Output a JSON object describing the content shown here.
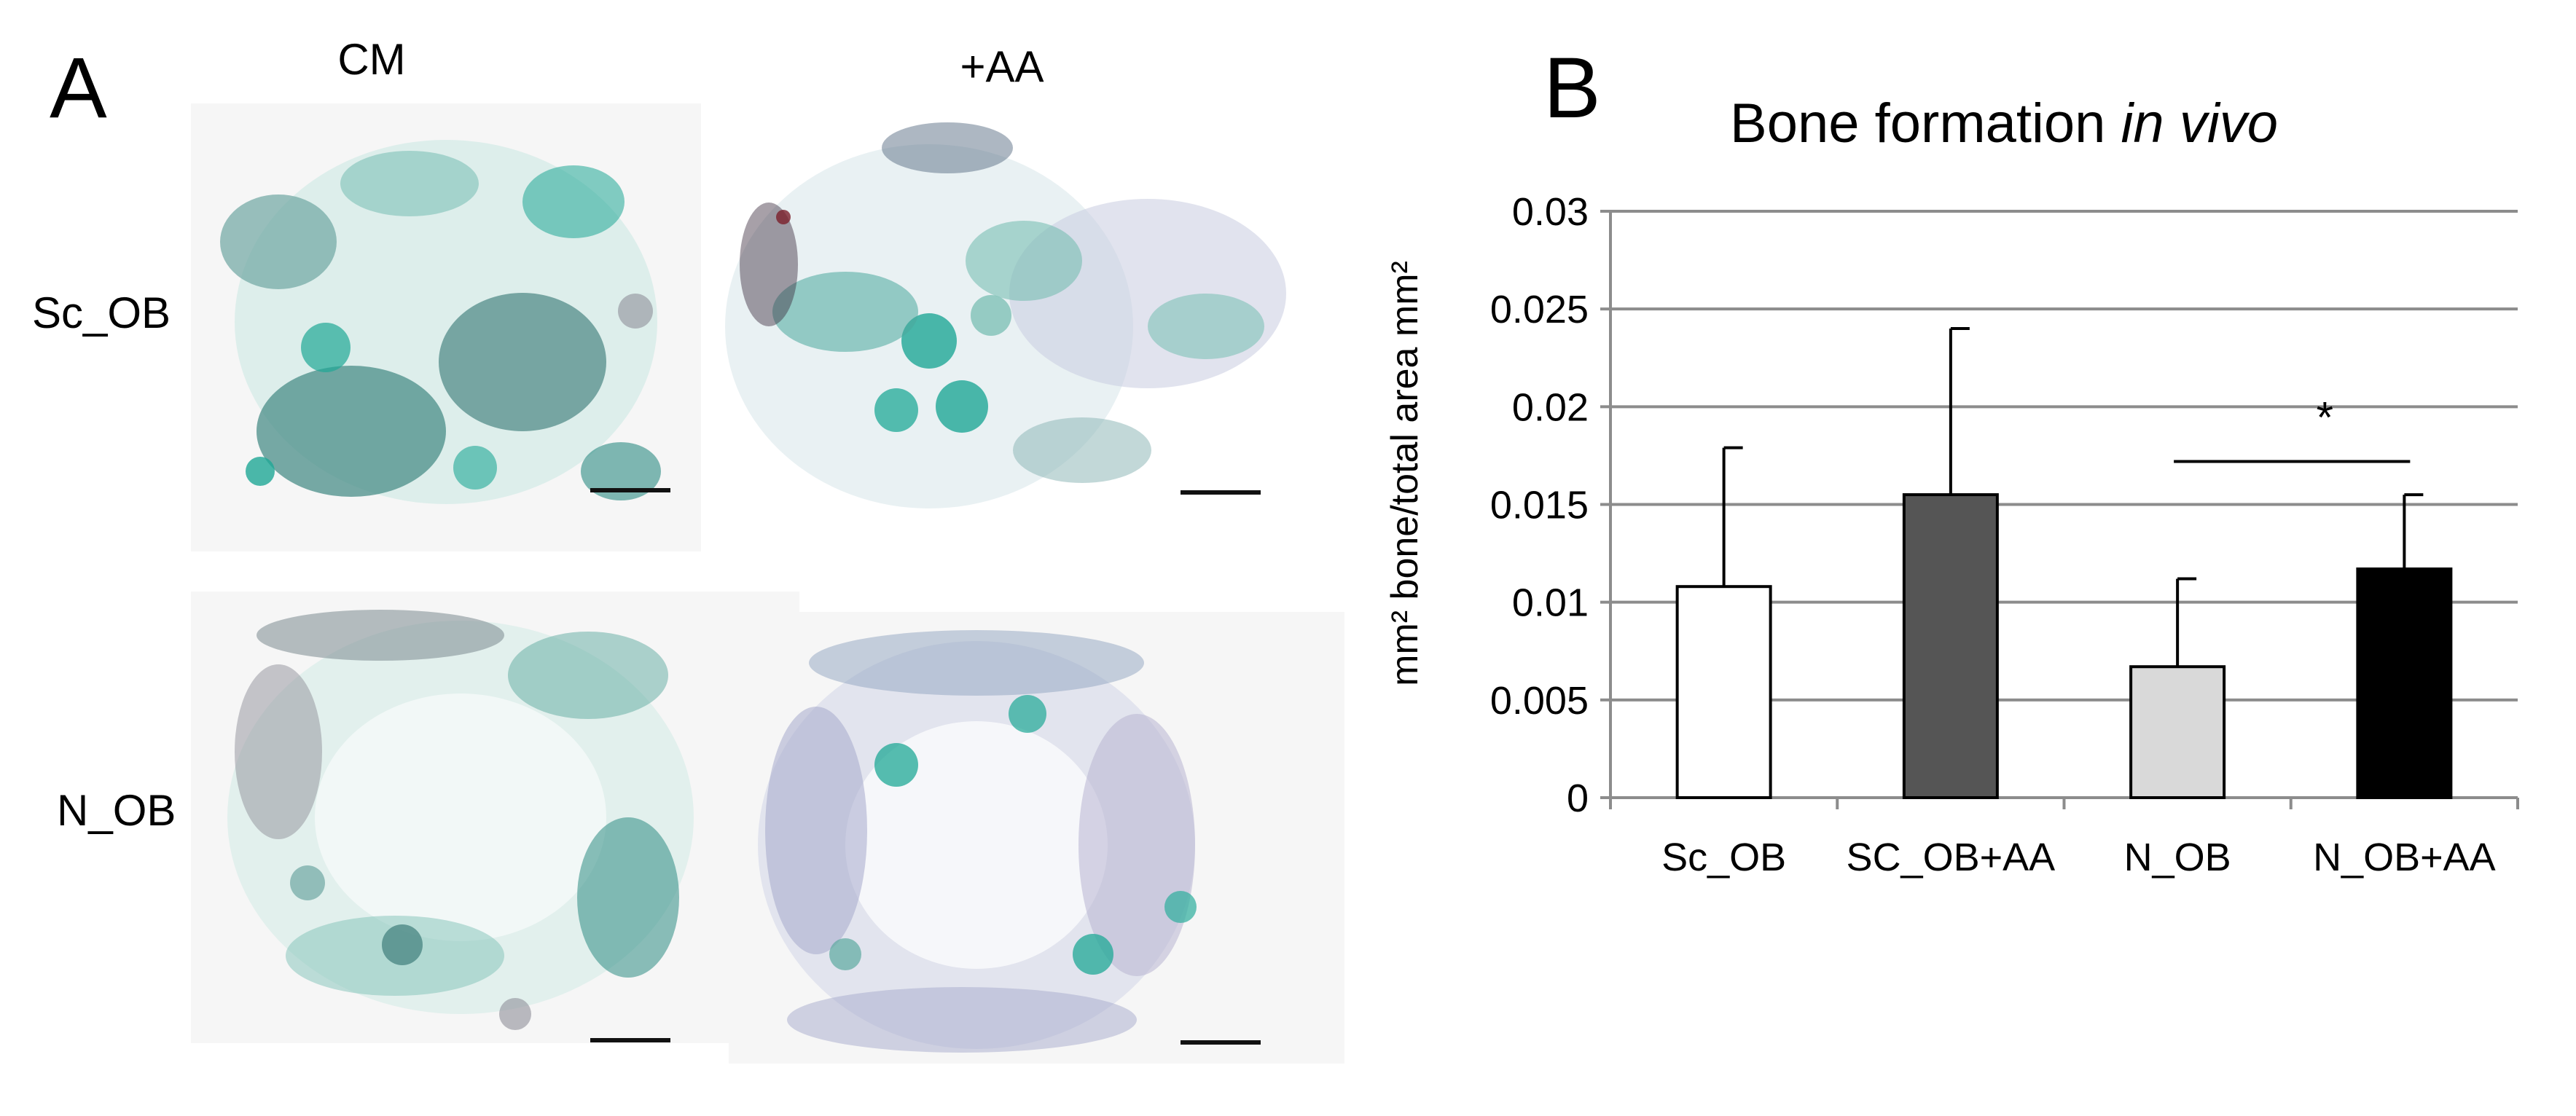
{
  "panel_a": {
    "letter": "A",
    "columns": [
      "CM",
      "+AA"
    ],
    "rows": [
      "Sc_OB",
      "N_OB"
    ],
    "images": [
      {
        "row": "Sc_OB",
        "column": "CM"
      },
      {
        "row": "Sc_OB",
        "column": "+AA"
      },
      {
        "row": "N_OB",
        "column": "CM"
      },
      {
        "row": "N_OB",
        "column": "+AA"
      }
    ],
    "colors": {
      "stain_teal": "#1fa896",
      "stain_dark": "#3f6d72",
      "stain_grey": "#8f8f9a",
      "stain_lilac": "#b8b4d2",
      "stain_red": "#7a1f2a",
      "background": "#f6f6f6"
    }
  },
  "panel_b": {
    "letter": "B",
    "title_main": "Bone formation ",
    "title_italic": "in vivo"
  },
  "chart_data": {
    "type": "bar",
    "title": "Bone formation in vivo",
    "ylabel": "mm² bone/total area mm²",
    "xlabel": "",
    "ylim": [
      0,
      0.03
    ],
    "yticks": [
      "0",
      "0.005",
      "0.01",
      "0.015",
      "0.02",
      "0.025",
      "0.03"
    ],
    "ytick_values": [
      0,
      0.005,
      0.01,
      0.015,
      0.02,
      0.025,
      0.03
    ],
    "grid": true,
    "categories": [
      "Sc_OB",
      "SC_OB+AA",
      "N_OB",
      "N_OB+AA"
    ],
    "values": [
      0.0108,
      0.0155,
      0.0067,
      0.0117
    ],
    "errors": [
      0.0071,
      0.0085,
      0.0045,
      0.0038
    ],
    "bar_colors": [
      "#ffffff",
      "#555555",
      "#d9d9d9",
      "#000000"
    ],
    "significance": {
      "from": "N_OB",
      "to": "N_OB+AA",
      "label": "*",
      "y": 0.0172
    }
  }
}
